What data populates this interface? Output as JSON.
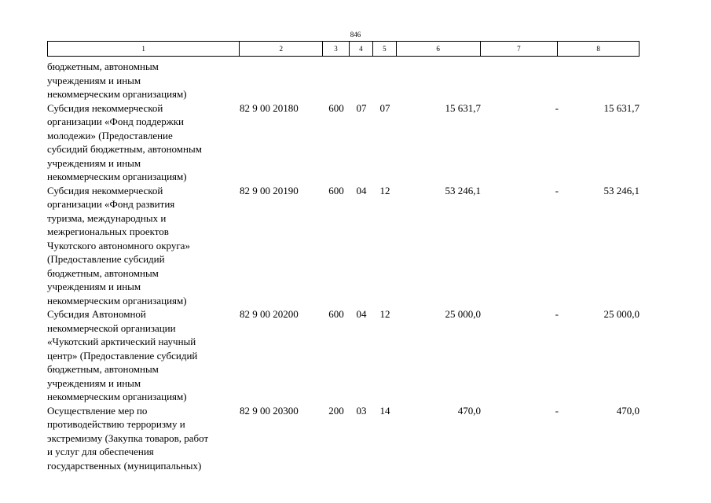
{
  "page_number": "846",
  "header": [
    "1",
    "2",
    "3",
    "4",
    "5",
    "6",
    "7",
    "8"
  ],
  "rows": [
    {
      "desc": "бюджетным, автономным\nучреждениям и иным\nнекоммерческим организациям)",
      "code": "",
      "c3": "",
      "c4": "",
      "c5": "",
      "c6": "",
      "c7": "",
      "c8": ""
    },
    {
      "desc": "Субсидия некоммерческой\nорганизации «Фонд поддержки\nмолодежи» (Предоставление\nсубсидий бюджетным, автономным\nучреждениям и иным\nнекоммерческим организациям)",
      "code": "82 9 00 20180",
      "c3": "600",
      "c4": "07",
      "c5": "07",
      "c6": "15 631,7",
      "c7": "-",
      "c8": "15 631,7"
    },
    {
      "desc": "Субсидия некоммерческой\nорганизации «Фонд развития\nтуризма, международных и\nмежрегиональных проектов\nЧукотского автономного округа»\n(Предоставление субсидий\nбюджетным, автономным\nучреждениям и иным\nнекоммерческим организациям)",
      "code": "82 9 00 20190",
      "c3": "600",
      "c4": "04",
      "c5": "12",
      "c6": "53 246,1",
      "c7": "-",
      "c8": "53 246,1"
    },
    {
      "desc": "Субсидия Автономной\nнекоммерческой организации\n«Чукотский арктический научный\nцентр» (Предоставление субсидий\nбюджетным, автономным\nучреждениям и иным\nнекоммерческим организациям)",
      "code": "82 9 00 20200",
      "c3": "600",
      "c4": "04",
      "c5": "12",
      "c6": "25 000,0",
      "c7": "-",
      "c8": "25 000,0"
    },
    {
      "desc": "Осуществление мер по\nпротиводействию терроризму и\nэкстремизму (Закупка товаров, работ\nи услуг для обеспечения\nгосударственных (муниципальных)",
      "code": "82 9 00 20300",
      "c3": "200",
      "c4": "03",
      "c5": "14",
      "c6": "470,0",
      "c7": "-",
      "c8": "470,0"
    }
  ]
}
